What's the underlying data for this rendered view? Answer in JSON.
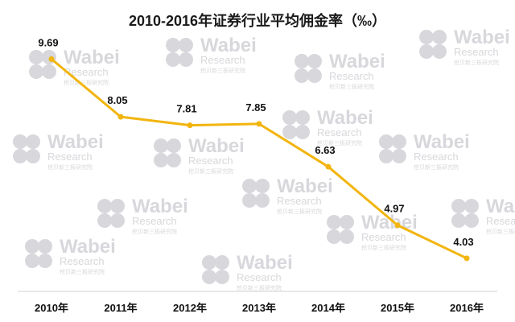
{
  "chart_data": {
    "type": "line",
    "title": "2010-2016年证券行业平均佣金率（‰）",
    "categories": [
      "2010年",
      "2011年",
      "2012年",
      "2013年",
      "2014年",
      "2015年",
      "2016年"
    ],
    "series": [
      {
        "values": [
          9.69,
          8.05,
          7.81,
          7.85,
          6.63,
          4.97,
          4.03
        ]
      }
    ],
    "data_labels": [
      "9.69",
      "8.05",
      "7.81",
      "7.85",
      "6.63",
      "4.97",
      "4.03"
    ],
    "ylim": [
      3.5,
      10.5
    ],
    "grid": false,
    "legend": "none",
    "xlabel": "",
    "ylabel": ""
  },
  "watermark": {
    "brand": "Wabei",
    "line2": "Research",
    "line3": "挖贝新三板研究院"
  },
  "colors": {
    "line": "#f2b50f",
    "axis": "#d0d0d0",
    "text": "#111111",
    "watermark": "#d8d8dc"
  }
}
